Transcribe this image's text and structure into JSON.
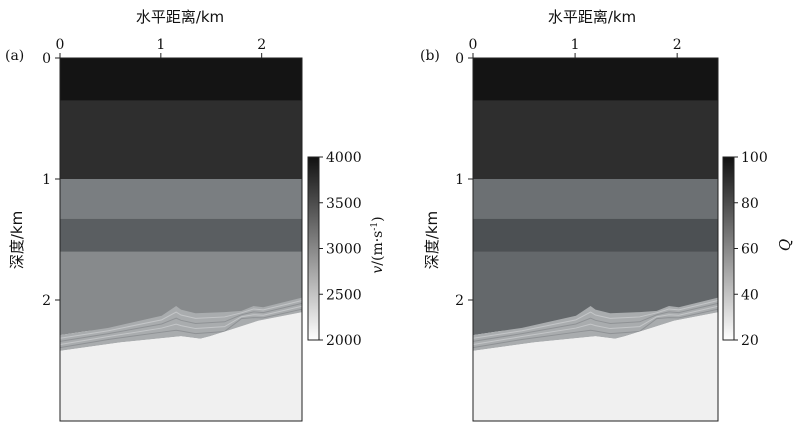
{
  "chart_data": [
    {
      "type": "heatmap",
      "panel_label": "(a)",
      "xlabel": "水平距离/km",
      "ylabel": "深度/km",
      "xticks": [
        "0",
        "1",
        "2"
      ],
      "yticks": [
        "0",
        "1",
        "2"
      ],
      "x_range_km": [
        0,
        2.4
      ],
      "y_range_km": [
        0,
        3.0
      ],
      "layers": [
        {
          "top_km": 0.0,
          "bottom_km": 0.35,
          "value": 3950,
          "color": "#141414"
        },
        {
          "top_km": 0.35,
          "bottom_km": 1.0,
          "value": 3550,
          "color": "#2e2e2e"
        },
        {
          "top_km": 1.0,
          "bottom_km": 1.33,
          "value": 3050,
          "color": "#7a7e81"
        },
        {
          "top_km": 1.33,
          "bottom_km": 1.6,
          "value": 3300,
          "color": "#5a5e61"
        },
        {
          "top_km": 1.6,
          "bottom_km": 2.25,
          "value": 2900,
          "color": "#878a8c"
        }
      ],
      "basement": {
        "value": 2050,
        "color": "#f0f0f0"
      },
      "colorbar": {
        "label_v": "v",
        "label_rest": "/(m·s",
        "label_sup": "-1",
        "label_end": ")",
        "min": 2000,
        "max": 4000,
        "ticks": [
          "2000",
          "2500",
          "3000",
          "3500",
          "4000"
        ]
      }
    },
    {
      "type": "heatmap",
      "panel_label": "(b)",
      "xlabel": "水平距离/km",
      "ylabel": "深度/km",
      "xticks": [
        "0",
        "1",
        "2"
      ],
      "yticks": [
        "0",
        "1",
        "2"
      ],
      "x_range_km": [
        0,
        2.4
      ],
      "y_range_km": [
        0,
        3.0
      ],
      "layers": [
        {
          "top_km": 0.0,
          "bottom_km": 0.35,
          "value": 97,
          "color": "#141414"
        },
        {
          "top_km": 0.35,
          "bottom_km": 1.0,
          "value": 88,
          "color": "#2e2e2e"
        },
        {
          "top_km": 1.0,
          "bottom_km": 1.33,
          "value": 68,
          "color": "#6c7073"
        },
        {
          "top_km": 1.33,
          "bottom_km": 1.6,
          "value": 75,
          "color": "#4c5053"
        },
        {
          "top_km": 1.6,
          "bottom_km": 2.25,
          "value": 70,
          "color": "#64686b"
        }
      ],
      "basement": {
        "value": 22,
        "color": "#f0f0f0"
      },
      "colorbar": {
        "label_v": "Q",
        "label_rest": "",
        "label_sup": "",
        "label_end": "",
        "min": 20,
        "max": 100,
        "ticks": [
          "20",
          "40",
          "60",
          "80",
          "100"
        ]
      }
    }
  ]
}
